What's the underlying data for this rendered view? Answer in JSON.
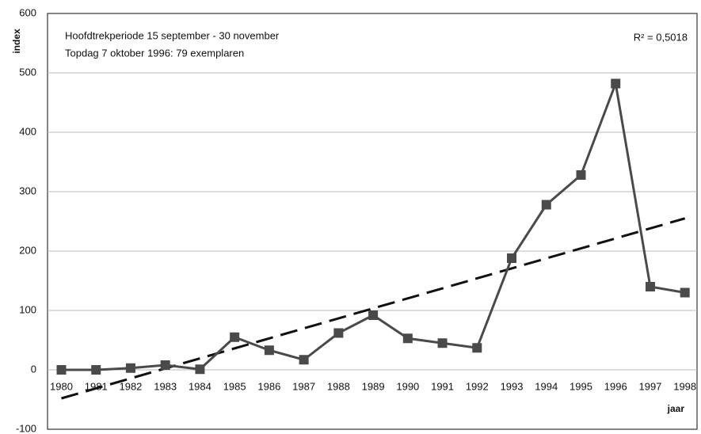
{
  "chart_data": {
    "type": "line",
    "annotations": [
      "Hoofdtrekperiode 15 september - 30 november",
      "Topdag  7 oktober 1996: 79 exemplaren"
    ],
    "r_squared": "R² = 0,5018",
    "ylabel": "index",
    "xlabel": "jaar",
    "x": [
      1980,
      1981,
      1982,
      1983,
      1984,
      1985,
      1986,
      1987,
      1988,
      1989,
      1990,
      1991,
      1992,
      1993,
      1994,
      1995,
      1996,
      1997,
      1998
    ],
    "series": [
      {
        "color": "#4a4a4a",
        "values": [
          0,
          0,
          3,
          8,
          1,
          55,
          33,
          17,
          62,
          92,
          53,
          45,
          37,
          188,
          278,
          328,
          482,
          140,
          130
        ]
      }
    ],
    "trendline": {
      "x": [
        1980,
        1998
      ],
      "values": [
        -48,
        255
      ],
      "color": "#111"
    },
    "xlim": [
      1979.6,
      1998.35
    ],
    "xticks": [
      1980,
      1981,
      1982,
      1983,
      1984,
      1985,
      1986,
      1987,
      1988,
      1989,
      1990,
      1991,
      1992,
      1993,
      1994,
      1995,
      1996,
      1997,
      1998
    ],
    "ylim": [
      -100,
      600
    ],
    "yticks": [
      -100,
      0,
      100,
      200,
      300,
      400,
      500,
      600
    ],
    "grid": true
  }
}
